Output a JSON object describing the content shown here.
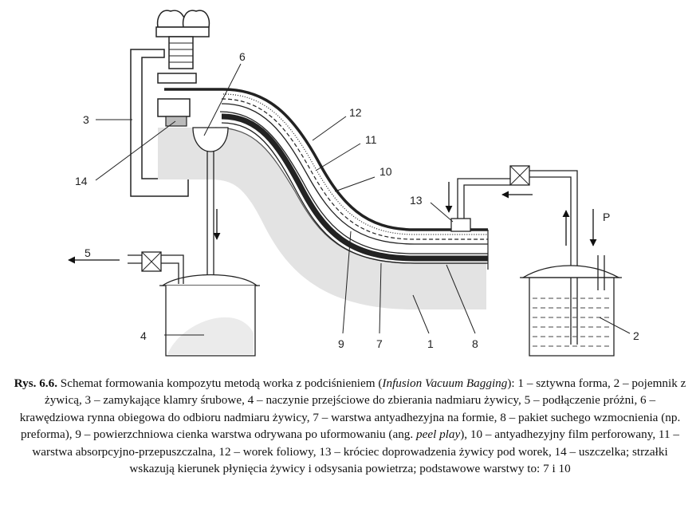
{
  "labels": {
    "l1": "1",
    "l2": "2",
    "l3": "3",
    "l4": "4",
    "l5": "5",
    "l6": "6",
    "l7": "7",
    "l8": "8",
    "l9": "9",
    "l10": "10",
    "l11": "11",
    "l12": "12",
    "l13": "13",
    "l14": "14",
    "lP": "P"
  },
  "caption": {
    "figure_no": "Rys. 6.6.",
    "title_a": " Schemat formowania kompozytu metodą worka z podciśnieniem (",
    "title_italic": "Infusion Vacuum Bagging",
    "text_a": "): 1 – sztywna forma, 2 – pojemnik z żywicą, 3 – zamykające klamry śrubowe, 4 – naczynie przejściowe do zbierania nadmiaru żywicy, 5 – podłączenie próżni, 6 – krawędziowa rynna obiegowa do odbioru nadmiaru żywicy, 7 – warstwa antyadhezyjna na formie, 8 – pakiet suchego wzmocnienia (np. preforma), 9 – powierzchniowa cienka warstwa odrywana po uformowaniu (ang. ",
    "text_italic": "peel play",
    "text_b": "), 10 – antyadhezyjny film perforowany, 11 – warstwa absorpcyjno-przepuszczalna, 12 – worek foliowy, 13 – króciec doprowadzenia żywicy pod worek, 14 – uszczelka; strzałki wskazują kierunek płynięcia żywicy i odsysania powietrza; podstawowe warstwy to: 7 i 10"
  }
}
